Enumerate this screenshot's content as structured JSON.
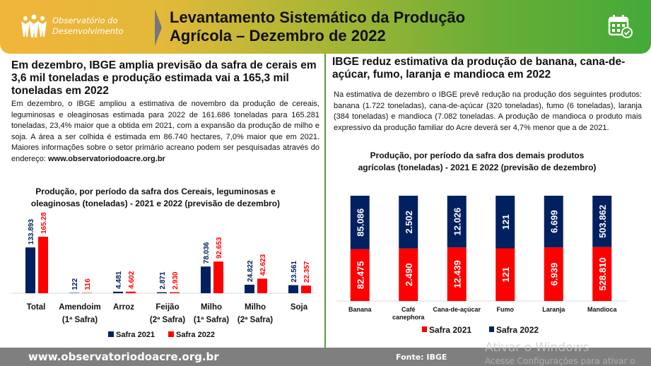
{
  "header": {
    "logo_line1": "Observatório do",
    "logo_line2": "Desenvolvimento",
    "title_line1": "Levantamento Sistemático da Produção",
    "title_line2": "Agrícola – Dezembro de 2022",
    "icon": "calendar-check-icon"
  },
  "left": {
    "headline": "Em dezembro, IBGE amplia previsão da safra de cerais em 3,6 mil toneladas e produção estimada vai a 165,3 mil toneladas  em 2022",
    "body": "Em dezembro, o IBGE ampliou a estimativa de novembro da produção de cereais, leguminosas e oleaginosas estimada para 2022 de 161.686 toneladas para 165.281   toneladas, 23,4% maior que a obtida em 2021, com a expansão da produção de milho e soja. A área a ser colhida é estimada em 86.740 hectares, 7,0% maior que em 2021. Maiores informações sobre o setor primário acreano podem ser pesquisadas através do endereço: ",
    "body_link": "www.observatoriodoacre.org.br"
  },
  "right": {
    "headline": "IBGE reduz estimativa da produção de banana, cana-de-açúcar, fumo, laranja e mandioca em 2022",
    "body": "Na estimativa de dezembro o IBGE prevê redução na produção dos seguintes produtos: banana (1.722 toneladas), cana-de-açúcar (320 toneladas), fumo (6 toneladas), laranja (384 toneladas) e mandioca (7.082 toneladas. A produção de mandioca o produto mais expressivo da produção familiar do Acre deverá ser 4,7% menor que a de 2021."
  },
  "chart_data": [
    {
      "type": "bar",
      "title": "Produção, por período da safra dos Cereais, leguminosas e oleaginosas (toneladas) - 2021 e 2022 (previsão de dezembro)",
      "categories": [
        "Total",
        "Amendoim (1ª Safra)",
        "Arroz",
        "Feijão (2ª Safra)",
        "Milho (1ª Safra)",
        "Milho (2ª Safra)",
        "Soja"
      ],
      "series": [
        {
          "name": "Safra 2021",
          "color": "#002060",
          "values": [
            133893,
            122,
            4481,
            2871,
            78036,
            24822,
            23561
          ],
          "labels": [
            "133.893",
            "122",
            "4.481",
            "2.871",
            "78.036",
            "24.822",
            "23.561"
          ]
        },
        {
          "name": "Safra 2022",
          "color": "#ff0000",
          "values": [
            165281,
            116,
            4602,
            2930,
            92653,
            42623,
            22357
          ],
          "labels": [
            "165.281",
            "116",
            "4.602",
            "2.930",
            "92.653",
            "42.623",
            "22.357"
          ]
        }
      ],
      "legend": "bottom",
      "grid": false
    },
    {
      "type": "bar",
      "stacked": "100%",
      "title": "Produção, por período da safra dos demais produtos agrícolas (toneladas) - 2021 E 2022 (previsão de dezembro)",
      "categories": [
        "Banana",
        "Café canephora",
        "Cana-de-açúcar",
        "Fumo",
        "Laranja",
        "Mandioca"
      ],
      "series": [
        {
          "name": "Safra 2021",
          "color": "#ff0000",
          "values": [
            82475,
            2490,
            12439,
            121,
            6939,
            528810
          ],
          "labels": [
            "82.475",
            "2.490",
            "12.439",
            "121",
            "6.939",
            "528.810"
          ]
        },
        {
          "name": "Safra 2022",
          "color": "#002060",
          "values": [
            85086,
            2502,
            12026,
            121,
            6699,
            503862
          ],
          "labels": [
            "85.086",
            "2.502",
            "12.026",
            "121",
            "6.699",
            "503.862"
          ]
        }
      ],
      "legend": "bottom",
      "grid": false
    }
  ],
  "footer": {
    "url": "www.observatoriodoacre.org.br",
    "source": "Fonte: IBGE"
  },
  "watermark": {
    "line1": "Ativar o Windows",
    "line2": "Acesse Configurações para ativar o"
  }
}
